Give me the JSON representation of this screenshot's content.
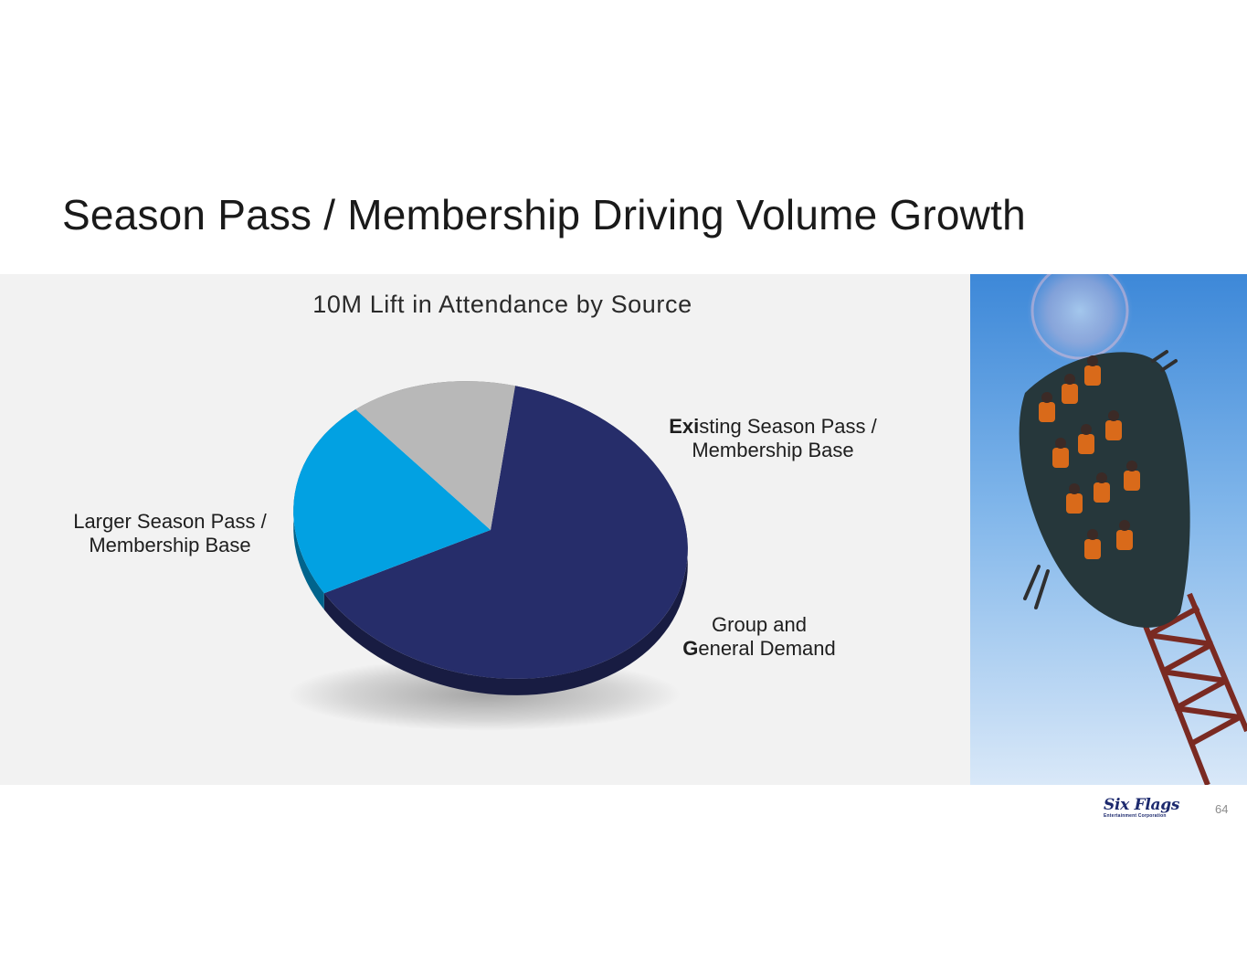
{
  "slide": {
    "title": "Season Pass / Membership Driving Volume Growth",
    "page_number": "64"
  },
  "logo": {
    "name": "Six Flags",
    "tagline": "Entertainment Corporation"
  },
  "chart_data": {
    "type": "pie",
    "title": "10M Lift in Attendance by Source",
    "series": [
      {
        "values": [
          {
            "label": "Larger Season Pass / Membership Base",
            "value": 64,
            "color": "#262d6a"
          },
          {
            "label": "Existing Season Pass / Membership Base",
            "value": 22,
            "color": "#02a1e2"
          },
          {
            "label": "Group and General Demand",
            "value": 14,
            "color": "#b8b8b8"
          }
        ]
      }
    ],
    "labels": {
      "larger": {
        "line1": "Larger Season Pass /",
        "line2": "Membership Base"
      },
      "existing": {
        "bold1": "Exi",
        "rest1": "sting Season Pass /",
        "bold2": "M",
        "rest2": "embership Base"
      },
      "group": {
        "line1": "Group and",
        "bold2": "G",
        "rest2": "eneral Demand"
      }
    }
  }
}
